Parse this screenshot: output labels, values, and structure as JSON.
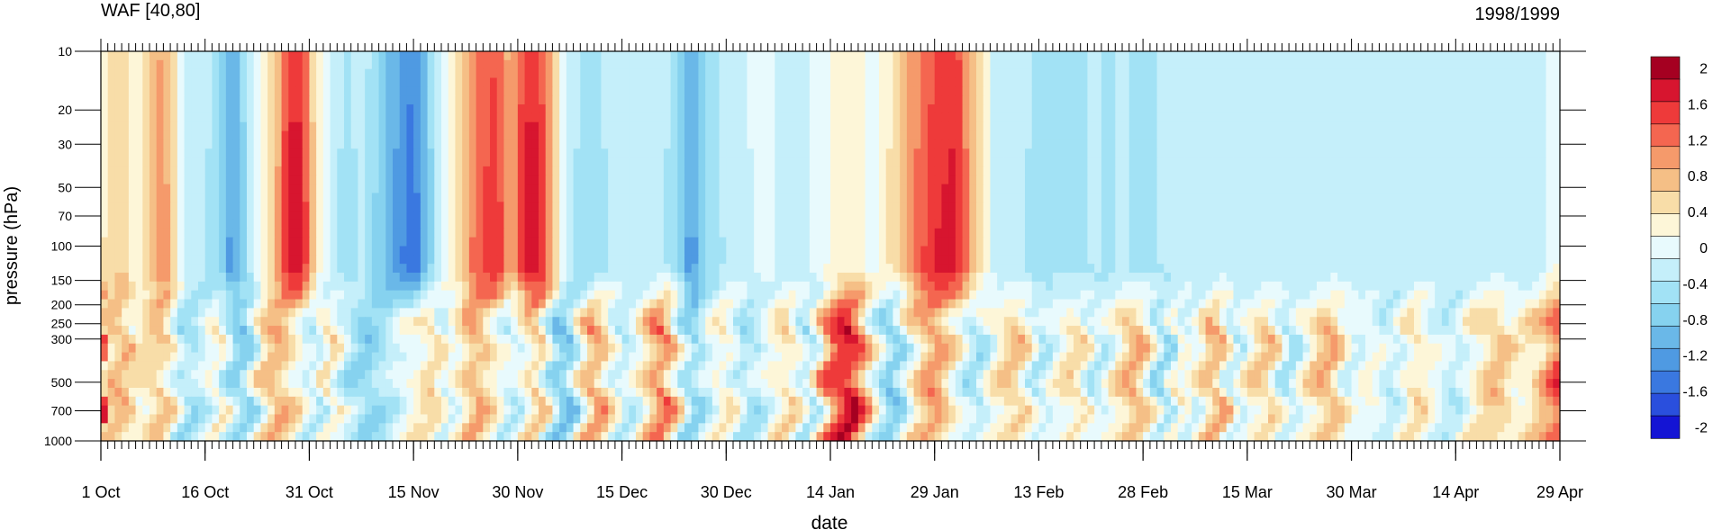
{
  "chart_data": {
    "type": "heatmap",
    "title_left": "WAF [40,80]",
    "title_right": "1998/1999",
    "xlabel": "date",
    "ylabel": "pressure (hPa)",
    "x_ticks": [
      "1 Oct",
      "16 Oct",
      "31 Oct",
      "15 Nov",
      "30 Nov",
      "15 Dec",
      "30 Dec",
      "14 Jan",
      "29 Jan",
      "13 Feb",
      "28 Feb",
      "15 Mar",
      "30 Mar",
      "14 Apr",
      "29 Apr"
    ],
    "y_ticks": [
      10,
      20,
      30,
      50,
      70,
      100,
      150,
      200,
      250,
      300,
      500,
      700,
      1000
    ],
    "y_scale": "log",
    "y_range": [
      10,
      1000
    ],
    "x_range_days": [
      0,
      210
    ],
    "colorbar": {
      "labels": [
        "2",
        "1.6",
        "1.2",
        "0.8",
        "0.4",
        "0",
        "-0.4",
        "-0.8",
        "-1.2",
        "-1.6",
        "-2"
      ],
      "colors": [
        "#a50021",
        "#d7152f",
        "#ee3a3a",
        "#f46650",
        "#f59a6b",
        "#f5bf86",
        "#f8dda8",
        "#fdf6d8",
        "#e8fafd",
        "#c5effa",
        "#a2e2f5",
        "#86d2ef",
        "#6ab8e8",
        "#4f9ae2",
        "#3a78e0",
        "#2a4fdd",
        "#1414d4"
      ]
    },
    "approx_day_profile": {
      "days": [
        0,
        3,
        5,
        9,
        12,
        15,
        17,
        19,
        21,
        23,
        25,
        27,
        29,
        31,
        33,
        35,
        38,
        41,
        45,
        48,
        50,
        52,
        54,
        57,
        59,
        61,
        63,
        65,
        67,
        69,
        71,
        73,
        75,
        77,
        79,
        81,
        83,
        85,
        87,
        90,
        93,
        96,
        99,
        102,
        105,
        108,
        111,
        114,
        117,
        120,
        123,
        126,
        129,
        132,
        135,
        138,
        141,
        143,
        145,
        147,
        149,
        151,
        153,
        155,
        157,
        159,
        161,
        163,
        165,
        168,
        171,
        174,
        177,
        180,
        183,
        186,
        189,
        192,
        195,
        198,
        201,
        204,
        207,
        210
      ],
      "strat_value": [
        0.4,
        0.8,
        0.2,
        1.4,
        -0.2,
        -0.4,
        -0.8,
        -1.6,
        -0.6,
        0.2,
        0.8,
        2.2,
        2.2,
        0.4,
        -0.2,
        -0.6,
        -0.4,
        -1.2,
        -2.0,
        -0.6,
        0.2,
        0.8,
        1.6,
        2.0,
        1.0,
        2.2,
        2.2,
        1.0,
        -0.2,
        -0.6,
        -0.8,
        -0.4,
        -0.4,
        -0.2,
        -0.4,
        -0.4,
        -0.8,
        -1.6,
        -0.8,
        -0.4,
        -0.2,
        0.0,
        -0.4,
        -0.2,
        0.2,
        0.4,
        0.0,
        0.6,
        1.4,
        2.0,
        2.2,
        0.8,
        -0.4,
        -0.4,
        -0.6,
        -0.6,
        -0.6,
        -0.4,
        -0.6,
        -0.4,
        -0.6,
        -0.6,
        -0.4,
        -0.4,
        -0.4,
        -0.4,
        -0.4,
        -0.4,
        -0.4,
        -0.4,
        -0.4,
        -0.4,
        -0.4,
        -0.4,
        -0.4,
        -0.4,
        -0.4,
        -0.4,
        -0.4,
        -0.4,
        -0.4,
        -0.4,
        -0.4,
        0.2
      ],
      "trop_value": [
        0.4,
        1.0,
        0.2,
        0.8,
        -0.6,
        -0.2,
        0.4,
        -0.6,
        -0.8,
        0.4,
        1.0,
        0.6,
        0.0,
        -0.4,
        0.6,
        -0.2,
        -0.8,
        -0.4,
        0.2,
        0.6,
        -0.2,
        0.4,
        1.0,
        0.2,
        -0.4,
        0.2,
        0.8,
        -0.6,
        -1.0,
        0.2,
        1.2,
        0.4,
        -0.4,
        0.0,
        0.8,
        1.4,
        0.2,
        -0.8,
        -0.2,
        0.4,
        -0.6,
        0.0,
        0.6,
        -0.6,
        1.4,
        2.0,
        0.2,
        -1.0,
        0.4,
        1.2,
        0.2,
        -0.6,
        0.4,
        0.8,
        -0.4,
        0.2,
        0.6,
        -0.4,
        0.0,
        0.6,
        1.0,
        0.2,
        -0.8,
        0.4,
        -0.2,
        0.6,
        1.0,
        -0.4,
        0.2,
        0.8,
        -0.6,
        0.4,
        1.0,
        -0.2,
        0.2,
        -0.4,
        0.6,
        0.0,
        -0.4,
        0.4,
        0.8,
        0.2,
        0.6,
        1.6
      ]
    }
  }
}
